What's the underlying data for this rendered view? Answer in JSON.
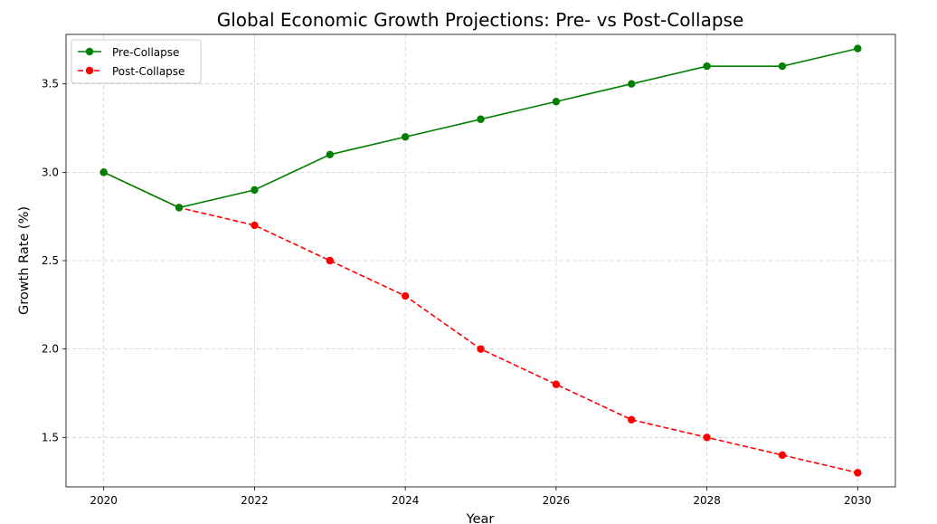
{
  "chart_data": {
    "type": "line",
    "title": "Global Economic Growth Projections: Pre- vs Post-Collapse",
    "xlabel": "Year",
    "ylabel": "Growth Rate (%)",
    "x": [
      2020,
      2021,
      2022,
      2023,
      2024,
      2025,
      2026,
      2027,
      2028,
      2029,
      2030
    ],
    "xticks": [
      "2020",
      "2022",
      "2024",
      "2026",
      "2028",
      "2030"
    ],
    "yticks": [
      "1.5",
      "2.0",
      "2.5",
      "3.0",
      "3.5"
    ],
    "xlim": [
      2019.5,
      2030.5
    ],
    "ylim": [
      1.22,
      3.78
    ],
    "grid": true,
    "legend_position": "upper-left",
    "series": [
      {
        "name": "Pre-Collapse",
        "color": "#008000",
        "line_style": "solid",
        "marker": "circle",
        "values": [
          3.0,
          2.8,
          2.9,
          3.1,
          3.2,
          3.3,
          3.4,
          3.5,
          3.6,
          3.6,
          3.7
        ]
      },
      {
        "name": "Post-Collapse",
        "color": "#ff0000",
        "line_style": "dashed",
        "marker": "circle",
        "values": [
          3.0,
          2.8,
          2.7,
          2.5,
          2.3,
          2.0,
          1.8,
          1.6,
          1.5,
          1.4,
          1.3
        ]
      }
    ]
  }
}
